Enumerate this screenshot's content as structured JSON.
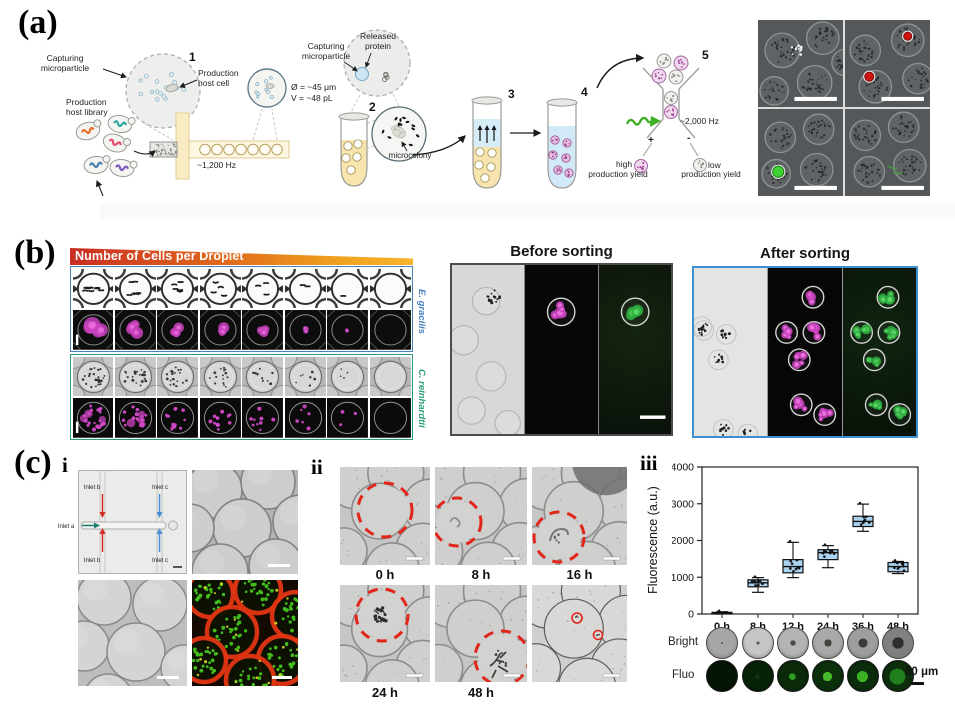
{
  "figure": {
    "panel_a": {
      "label": "(a)",
      "capturing_microparticle": "Capturing\nmicroparticle",
      "production_host_cell": "Production\nhost cell",
      "production_host_library": "Production\nhost library",
      "released_protein": "Released\nprotein",
      "microcolony": "microcolony",
      "droplet_rate": "~1,200 Hz",
      "sort_rate": "~2,000 Hz",
      "diameter": "Ø = ~45 μm",
      "volume": "V = ~48 pL",
      "steps": [
        "1",
        "2",
        "3",
        "4",
        "5"
      ],
      "plus": "+",
      "minus": "-",
      "high": "high",
      "low": "low",
      "production_yield": "production yield"
    },
    "panel_b": {
      "label": "(b)",
      "gradient_title": "Number of Cells per Droplet",
      "species_top": "E. gracilis",
      "species_bottom": "C. reinhardtii",
      "before_title": "Before sorting",
      "after_title": "After sorting"
    },
    "panel_c": {
      "label": "(c)",
      "sub_i": "i",
      "sub_ii": "ii",
      "sub_iii": "iii",
      "inlet_a": "Inlet a",
      "inlet_b": "Inlet b",
      "inlet_c": "Inlet c",
      "timepoints": [
        "0 h",
        "8 h",
        "16 h",
        "24 h",
        "48 h"
      ],
      "bright_label": "Bright",
      "fluo_label": "Fluo",
      "scale_label": "50 μm"
    }
  },
  "chart_data": {
    "type": "box",
    "ylabel": "Fluorescence (a.u.)",
    "categories": [
      "0 h",
      "8 h",
      "12 h",
      "24 h",
      "36 h",
      "48 h"
    ],
    "ylim": [
      0,
      4000
    ],
    "yticks": [
      0,
      1000,
      2000,
      3000,
      4000
    ],
    "grid": false,
    "box_fill": "#a9d3f0",
    "boxes": [
      {
        "category": "0 h",
        "low": 5,
        "q1": 10,
        "median": 25,
        "q3": 45,
        "high": 60
      },
      {
        "category": "8 h",
        "low": 590,
        "q1": 740,
        "median": 850,
        "q3": 930,
        "high": 990
      },
      {
        "category": "12 h",
        "low": 990,
        "q1": 1120,
        "median": 1290,
        "q3": 1480,
        "high": 1950
      },
      {
        "category": "24 h",
        "low": 1260,
        "q1": 1480,
        "median": 1670,
        "q3": 1750,
        "high": 1860
      },
      {
        "category": "36 h",
        "low": 2250,
        "q1": 2380,
        "median": 2520,
        "q3": 2660,
        "high": 2990
      },
      {
        "category": "48 h",
        "low": 1100,
        "q1": 1150,
        "median": 1290,
        "q3": 1400,
        "high": 1430
      }
    ]
  },
  "colors": {
    "magenta": "#c843bd",
    "green": "#3ec95b",
    "red": "#e1251b",
    "blue_border": "#4a7fbe",
    "teal_border": "#2e9e6f",
    "after_border": "#3d8fd4"
  }
}
